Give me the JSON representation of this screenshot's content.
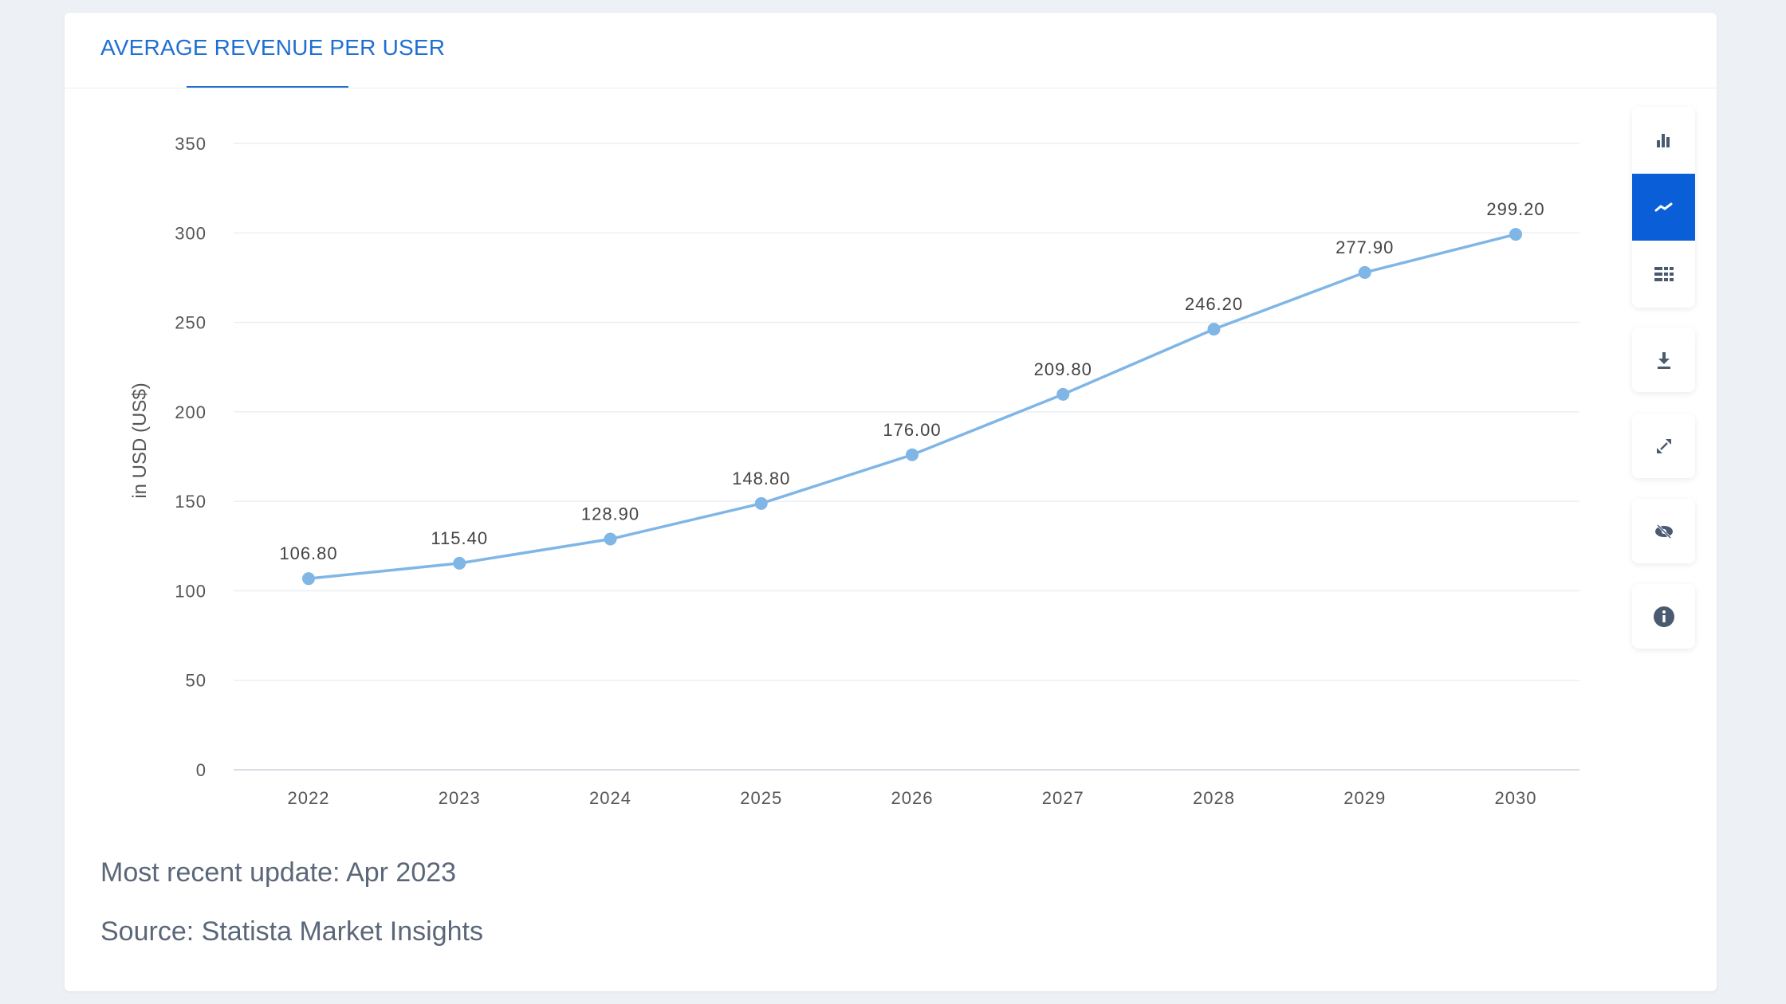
{
  "header": {
    "title": "AVERAGE REVENUE PER USER"
  },
  "toolbar": {
    "icons": [
      "bar-chart-icon",
      "line-chart-icon",
      "table-icon",
      "download-icon",
      "expand-icon",
      "hide-icon",
      "info-icon"
    ],
    "active": "line-chart-icon",
    "accent": "#0a5fd8"
  },
  "chart_data": {
    "type": "line",
    "categories": [
      "2022",
      "2023",
      "2024",
      "2025",
      "2026",
      "2027",
      "2028",
      "2029",
      "2030"
    ],
    "series": [
      {
        "values": [
          106.8,
          115.4,
          128.9,
          148.8,
          176.0,
          209.8,
          246.2,
          277.9,
          299.2
        ],
        "labels": [
          "106.80",
          "115.40",
          "128.90",
          "148.80",
          "176.00",
          "209.80",
          "246.20",
          "277.90",
          "299.20"
        ],
        "color": "#7fb6e6"
      }
    ],
    "ylabel": "in USD (US$)",
    "ylim": [
      0,
      350
    ],
    "yticks": [
      "0",
      "50",
      "100",
      "150",
      "200",
      "250",
      "300",
      "350"
    ],
    "grid": true,
    "legend": "none"
  },
  "footer": {
    "update": "Most recent update: Apr 2023",
    "source": "Source: Statista Market Insights"
  }
}
